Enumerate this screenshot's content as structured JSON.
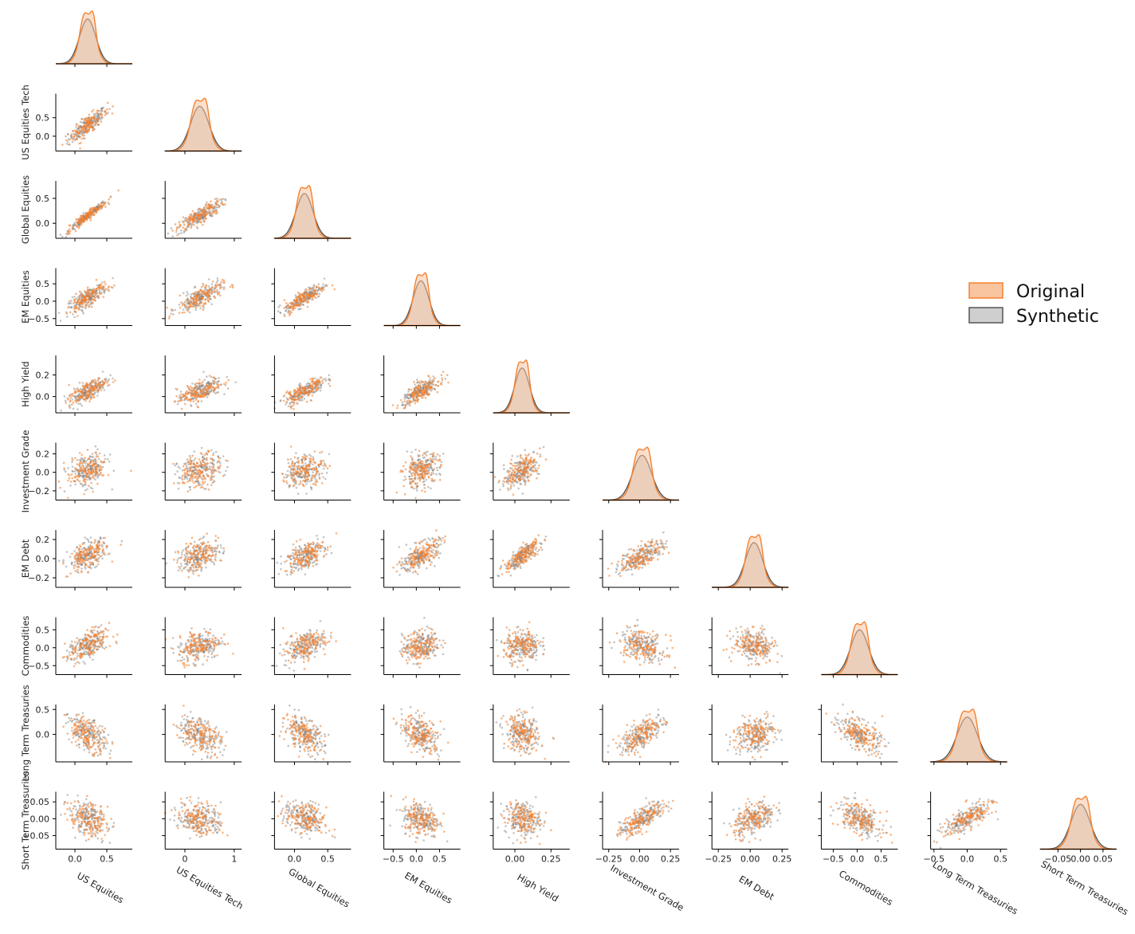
{
  "chart_data": {
    "type": "pairplot",
    "variables": [
      "US Equities",
      "US Equities Tech",
      "Global Equities",
      "EM Equities",
      "High Yield",
      "Investment Grade",
      "EM Debt",
      "Commodities",
      "Long Term Treasuries",
      "Short Term Treasuries"
    ],
    "ranges": [
      [
        -0.3,
        0.9
      ],
      [
        -0.4,
        1.15
      ],
      [
        -0.3,
        0.85
      ],
      [
        -0.7,
        0.95
      ],
      [
        -0.15,
        0.38
      ],
      [
        -0.3,
        0.32
      ],
      [
        -0.3,
        0.3
      ],
      [
        -0.75,
        0.85
      ],
      [
        -0.55,
        0.6
      ],
      [
        -0.09,
        0.08
      ]
    ],
    "y_ticks": {
      "US Equities Tech": [
        0.0,
        0.5
      ],
      "Global Equities": [
        0.0,
        0.5
      ],
      "EM Equities": [
        -0.5,
        0.0,
        0.5
      ],
      "High Yield": [
        0.0,
        0.2
      ],
      "Investment Grade": [
        -0.2,
        0.0,
        0.2
      ],
      "EM Debt": [
        -0.2,
        0.0,
        0.2
      ],
      "Commodities": [
        -0.5,
        0.0,
        0.5
      ],
      "Long Term Treasuries": [
        0.0,
        0.5
      ],
      "Short Term Treasuries": [
        -0.05,
        0.0,
        0.05
      ]
    },
    "x_ticks": {
      "US Equities": [
        0.0,
        0.5
      ],
      "US Equities Tech": [
        0,
        1
      ],
      "Global Equities": [
        0.0,
        0.5
      ],
      "EM Equities": [
        -0.5,
        0.0,
        0.5
      ],
      "High Yield": [
        0.0,
        0.25
      ],
      "Investment Grade": [
        -0.25,
        0.0,
        0.25
      ],
      "EM Debt": [
        -0.25,
        0.0,
        0.25
      ],
      "Commodities": [
        -0.5,
        0.0,
        0.5
      ],
      "Long Term Treasuries": [
        -0.5,
        0.0,
        0.5
      ],
      "Short Term Treasuries": [
        -0.05,
        0.0,
        0.05
      ]
    },
    "tick_labels": {
      "US Equities": [
        "0.0",
        "0.5"
      ],
      "US Equities Tech": [
        "0",
        "1"
      ],
      "Global Equities": [
        "0.0",
        "0.5"
      ],
      "EM Equities": [
        "−0.5",
        "0.0",
        "0.5"
      ],
      "High Yield": [
        "0.00",
        "0.25"
      ],
      "Investment Grade": [
        "−0.25",
        "0.00",
        "0.25"
      ],
      "EM Debt": [
        "−0.25",
        "0.00",
        "0.25"
      ],
      "Commodities": [
        "−0.5",
        "0.0",
        "0.5"
      ],
      "Long Term Treasuries": [
        "−0.5",
        "0.0",
        "0.5"
      ],
      "Short Term Treasuries": [
        "−0.05",
        "0.00",
        "0.05"
      ]
    },
    "y_tick_labels": {
      "US Equities Tech": [
        "0.0",
        "0.5"
      ],
      "Global Equities": [
        "0.0",
        "0.5"
      ],
      "EM Equities": [
        "−0.5",
        "0.0",
        "0.5"
      ],
      "High Yield": [
        "0.0",
        "0.2"
      ],
      "Investment Grade": [
        "−0.2",
        "0.0",
        "0.2"
      ],
      "EM Debt": [
        "−0.2",
        "0.0",
        "0.2"
      ],
      "Commodities": [
        "−0.5",
        "0.0",
        "0.5"
      ],
      "Long Term Treasuries": [
        "0.0",
        "0.5"
      ],
      "Short Term Treasuries": [
        "−0.05",
        "0.00",
        "0.05"
      ]
    },
    "x_tick_labels_special": {
      "Short Term Treasuries": [
        "−0.05",
        "0.00",
        "0.05"
      ]
    },
    "series": [
      {
        "name": "Original",
        "color": "#f58231",
        "fill": "#f9c4a0"
      },
      {
        "name": "Synthetic",
        "color": "#555555",
        "fill": "#cfcfcf"
      }
    ],
    "means": [
      0.2,
      0.3,
      0.15,
      0.1,
      0.05,
      0.02,
      0.03,
      0.05,
      0.0,
      0.0
    ],
    "sds": [
      0.15,
      0.22,
      0.15,
      0.2,
      0.06,
      0.09,
      0.08,
      0.22,
      0.18,
      0.025
    ],
    "corr": [
      [
        1.0,
        0.85,
        0.97,
        0.8,
        0.75,
        0.25,
        0.45,
        0.5,
        -0.5,
        -0.3
      ],
      [
        0.85,
        1.0,
        0.85,
        0.72,
        0.65,
        0.25,
        0.4,
        0.3,
        -0.4,
        -0.2
      ],
      [
        0.97,
        0.85,
        1.0,
        0.85,
        0.78,
        0.25,
        0.5,
        0.5,
        -0.5,
        -0.3
      ],
      [
        0.8,
        0.72,
        0.85,
        1.0,
        0.78,
        0.3,
        0.6,
        0.25,
        -0.4,
        -0.2
      ],
      [
        0.75,
        0.65,
        0.78,
        0.78,
        1.0,
        0.55,
        0.85,
        0.05,
        -0.2,
        -0.1
      ],
      [
        0.25,
        0.25,
        0.25,
        0.3,
        0.55,
        1.0,
        0.7,
        -0.3,
        0.7,
        0.8
      ],
      [
        0.45,
        0.4,
        0.5,
        0.6,
        0.85,
        0.7,
        1.0,
        -0.2,
        0.2,
        0.45
      ],
      [
        0.5,
        0.3,
        0.5,
        0.25,
        0.05,
        -0.3,
        -0.2,
        1.0,
        -0.6,
        -0.5
      ],
      [
        -0.5,
        -0.4,
        -0.5,
        -0.4,
        -0.2,
        0.7,
        0.2,
        -0.6,
        1.0,
        0.75
      ],
      [
        -0.3,
        -0.2,
        -0.3,
        -0.2,
        -0.1,
        0.8,
        0.45,
        -0.5,
        0.75,
        1.0
      ]
    ],
    "legend": {
      "position": "right",
      "entries": [
        "Original",
        "Synthetic"
      ]
    },
    "grid": false
  }
}
